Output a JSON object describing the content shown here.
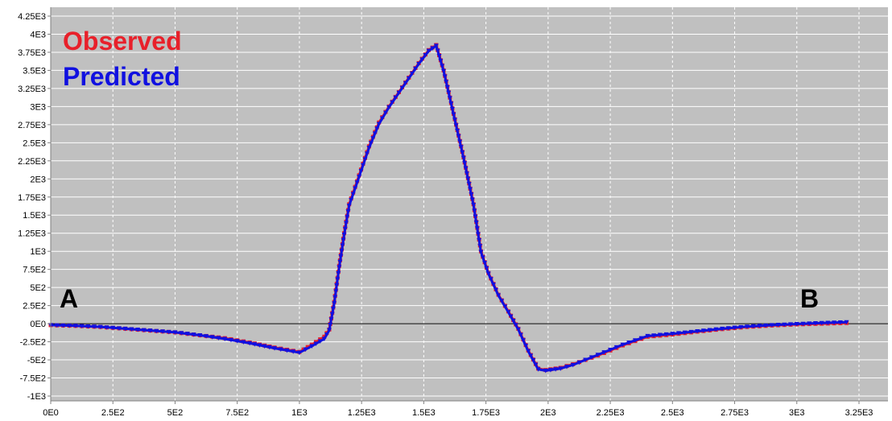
{
  "chart_data": {
    "type": "line",
    "title": "",
    "xlabel": "",
    "ylabel": "",
    "xlim": [
      0,
      3250
    ],
    "ylim": [
      -1000,
      4250
    ],
    "grid": true,
    "legend_position": "top-left",
    "x_ticks": [
      0,
      250,
      500,
      750,
      1000,
      1250,
      1500,
      1750,
      2000,
      2250,
      2500,
      2750,
      3000,
      3250
    ],
    "x_tick_labels": [
      "0E0",
      "2.5E2",
      "5E2",
      "7.5E2",
      "1E3",
      "1.25E3",
      "1.5E3",
      "1.75E3",
      "2E3",
      "2.25E3",
      "2.5E3",
      "2.75E3",
      "3E3",
      "3.25E3"
    ],
    "y_ticks": [
      4250,
      4000,
      3750,
      3500,
      3250,
      3000,
      2750,
      2500,
      2250,
      2000,
      1750,
      1500,
      1250,
      1000,
      750,
      500,
      250,
      0,
      -250,
      -500,
      -750,
      -1000
    ],
    "y_tick_labels": [
      "4.25E3",
      "4E3",
      "3.75E3",
      "3.5E3",
      "3.25E3",
      "3E3",
      "2.75E3",
      "2.5E3",
      "2.25E3",
      "2E3",
      "1.75E3",
      "1.5E3",
      "1.25E3",
      "1E3",
      "7.5E2",
      "5E2",
      "2.5E2",
      "0E0",
      "-2.5E2",
      "-5E2",
      "-7.5E2",
      "-1E3"
    ],
    "series": [
      {
        "name": "Observed",
        "color": "#e8202a",
        "x": [
          0,
          100,
          200,
          300,
          400,
          500,
          600,
          700,
          800,
          900,
          1000,
          1050,
          1100,
          1120,
          1140,
          1160,
          1180,
          1200,
          1240,
          1280,
          1320,
          1360,
          1400,
          1440,
          1480,
          1520,
          1550,
          1580,
          1620,
          1660,
          1700,
          1730,
          1760,
          1800,
          1840,
          1880,
          1920,
          1960,
          1990,
          2050,
          2100,
          2150,
          2200,
          2250,
          2300,
          2350,
          2400,
          2500,
          2600,
          2700,
          2800,
          2900,
          3000,
          3100,
          3200
        ],
        "y": [
          -20,
          -30,
          -45,
          -70,
          -95,
          -120,
          -160,
          -200,
          -260,
          -330,
          -390,
          -290,
          -180,
          -80,
          300,
          800,
          1250,
          1650,
          2050,
          2450,
          2780,
          3000,
          3200,
          3400,
          3600,
          3780,
          3850,
          3500,
          2900,
          2300,
          1650,
          1000,
          700,
          400,
          170,
          -70,
          -370,
          -620,
          -640,
          -610,
          -560,
          -500,
          -440,
          -370,
          -300,
          -240,
          -180,
          -150,
          -110,
          -75,
          -45,
          -25,
          -10,
          0,
          10
        ]
      },
      {
        "name": "Predicted",
        "color": "#1010e0",
        "x": [
          0,
          100,
          200,
          300,
          400,
          500,
          600,
          700,
          800,
          900,
          1000,
          1050,
          1100,
          1120,
          1140,
          1160,
          1180,
          1200,
          1240,
          1280,
          1320,
          1360,
          1400,
          1440,
          1480,
          1520,
          1550,
          1580,
          1620,
          1660,
          1700,
          1730,
          1760,
          1800,
          1840,
          1880,
          1920,
          1960,
          1990,
          2050,
          2100,
          2150,
          2200,
          2250,
          2300,
          2350,
          2400,
          2500,
          2600,
          2700,
          2800,
          2900,
          3000,
          3100,
          3200
        ],
        "y": [
          -20,
          -30,
          -45,
          -70,
          -95,
          -120,
          -160,
          -210,
          -270,
          -340,
          -400,
          -310,
          -210,
          -90,
          280,
          780,
          1230,
          1630,
          2030,
          2430,
          2760,
          2990,
          3190,
          3390,
          3590,
          3770,
          3840,
          3490,
          2890,
          2290,
          1640,
          990,
          690,
          390,
          160,
          -80,
          -380,
          -630,
          -650,
          -620,
          -570,
          -500,
          -430,
          -360,
          -290,
          -230,
          -170,
          -140,
          -105,
          -70,
          -40,
          -20,
          -5,
          10,
          20
        ]
      }
    ],
    "annotations": [
      {
        "text": "A",
        "x": 40,
        "y": 300
      },
      {
        "text": "B",
        "x": 3070,
        "y": 300
      }
    ]
  }
}
